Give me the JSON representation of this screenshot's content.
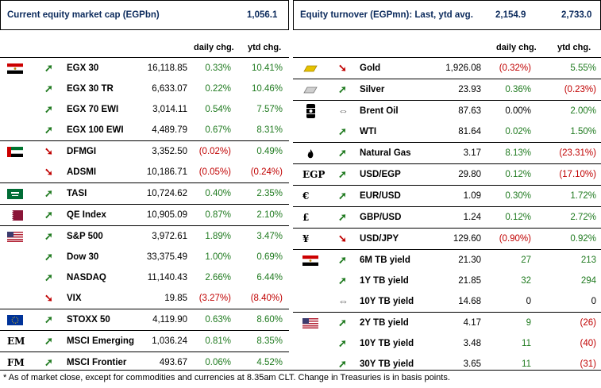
{
  "left_header": {
    "title": "Current equity market cap (EGPbn)",
    "value": "1,056.1"
  },
  "right_header": {
    "title": "Equity turnover (EGPmn): Last, ytd avg.",
    "last": "2,154.9",
    "ytd_avg": "2,733.0"
  },
  "col_daily": "daily chg.",
  "col_ytd": "ytd chg.",
  "left_rows": [
    {
      "flag": "egypt-flag-icon",
      "dir": "up",
      "name": "EGX 30",
      "value": "16,118.85",
      "daily": "0.33%",
      "ytd": "10.41%",
      "dc": "g",
      "yc": "g",
      "group_start": true
    },
    {
      "flag": "",
      "dir": "up",
      "name": "EGX 30 TR",
      "value": "6,633.07",
      "daily": "0.22%",
      "ytd": "10.46%",
      "dc": "g",
      "yc": "g"
    },
    {
      "flag": "",
      "dir": "up",
      "name": "EGX 70 EWI",
      "value": "3,014.11",
      "daily": "0.54%",
      "ytd": "7.57%",
      "dc": "g",
      "yc": "g"
    },
    {
      "flag": "",
      "dir": "up",
      "name": "EGX 100 EWI",
      "value": "4,489.79",
      "daily": "0.67%",
      "ytd": "8.31%",
      "dc": "g",
      "yc": "g"
    },
    {
      "flag": "uae-flag-icon",
      "dir": "down",
      "name": "DFMGI",
      "value": "3,352.50",
      "daily": "(0.02%)",
      "ytd": "0.49%",
      "dc": "r",
      "yc": "g",
      "group_start": true
    },
    {
      "flag": "",
      "dir": "down",
      "name": "ADSMI",
      "value": "10,186.71",
      "daily": "(0.05%)",
      "ytd": "(0.24%)",
      "dc": "r",
      "yc": "r"
    },
    {
      "flag": "saudi-flag-icon",
      "dir": "up",
      "name": "TASI",
      "value": "10,724.62",
      "daily": "0.40%",
      "ytd": "2.35%",
      "dc": "g",
      "yc": "g",
      "group_start": true
    },
    {
      "flag": "qatar-flag-icon",
      "dir": "up",
      "name": "QE Index",
      "value": "10,905.09",
      "daily": "0.87%",
      "ytd": "2.10%",
      "dc": "g",
      "yc": "g",
      "group_start": true
    },
    {
      "flag": "us-flag-icon",
      "dir": "up",
      "name": "S&P 500",
      "value": "3,972.61",
      "daily": "1.89%",
      "ytd": "3.47%",
      "dc": "g",
      "yc": "g",
      "group_start": true
    },
    {
      "flag": "",
      "dir": "up",
      "name": "Dow 30",
      "value": "33,375.49",
      "daily": "1.00%",
      "ytd": "0.69%",
      "dc": "g",
      "yc": "g"
    },
    {
      "flag": "",
      "dir": "up",
      "name": "NASDAQ",
      "value": "11,140.43",
      "daily": "2.66%",
      "ytd": "6.44%",
      "dc": "g",
      "yc": "g"
    },
    {
      "flag": "",
      "dir": "down",
      "name": "VIX",
      "value": "19.85",
      "daily": "(3.27%)",
      "ytd": "(8.40%)",
      "dc": "r",
      "yc": "r"
    },
    {
      "flag": "eu-flag-icon",
      "dir": "up",
      "name": "STOXX 50",
      "value": "4,119.90",
      "daily": "0.63%",
      "ytd": "8.60%",
      "dc": "g",
      "yc": "g",
      "group_start": true
    },
    {
      "flag": "text",
      "flag_text": "EM",
      "dir": "up",
      "name": "MSCI Emerging",
      "value": "1,036.24",
      "daily": "0.81%",
      "ytd": "8.35%",
      "dc": "g",
      "yc": "g",
      "group_start": true
    },
    {
      "flag": "text",
      "flag_text": "FM",
      "dir": "up",
      "name": "MSCI Frontier",
      "value": "493.67",
      "daily": "0.06%",
      "ytd": "4.52%",
      "dc": "g",
      "yc": "g",
      "group_start": true
    }
  ],
  "right_rows": [
    {
      "icon": "gold-bar-icon",
      "dir": "down",
      "name": "Gold",
      "value": "1,926.08",
      "daily": "(0.32%)",
      "ytd": "5.55%",
      "dc": "r",
      "yc": "g",
      "group_start": true
    },
    {
      "icon": "silver-bar-icon",
      "dir": "up",
      "name": "Silver",
      "value": "23.93",
      "daily": "0.36%",
      "ytd": "(0.23%)",
      "dc": "g",
      "yc": "r",
      "group_start": true
    },
    {
      "icon": "oil-barrel-icon",
      "dir": "flat",
      "name": "Brent Oil",
      "value": "87.63",
      "daily": "0.00%",
      "ytd": "2.00%",
      "dc": "k",
      "yc": "g",
      "group_start": true
    },
    {
      "icon": "",
      "dir": "up",
      "name": "WTI",
      "value": "81.64",
      "daily": "0.02%",
      "ytd": "1.50%",
      "dc": "g",
      "yc": "g"
    },
    {
      "icon": "flame-icon",
      "dir": "up",
      "name": "Natural Gas",
      "value": "3.17",
      "daily": "8.13%",
      "ytd": "(23.31%)",
      "dc": "g",
      "yc": "r",
      "group_start": true
    },
    {
      "icon": "text",
      "icon_text": "EGP",
      "dir": "up",
      "name": "USD/EGP",
      "value": "29.80",
      "daily": "0.12%",
      "ytd": "(17.10%)",
      "dc": "g",
      "yc": "r",
      "group_start": true
    },
    {
      "icon": "text",
      "icon_text": "€",
      "dir": "up",
      "name": "EUR/USD",
      "value": "1.09",
      "daily": "0.30%",
      "ytd": "1.72%",
      "dc": "g",
      "yc": "g",
      "group_start": true
    },
    {
      "icon": "text",
      "icon_text": "£",
      "dir": "up",
      "name": "GBP/USD",
      "value": "1.24",
      "daily": "0.12%",
      "ytd": "2.72%",
      "dc": "g",
      "yc": "g",
      "group_start": true
    },
    {
      "icon": "text",
      "icon_text": "¥",
      "dir": "down",
      "name": "USD/JPY",
      "value": "129.60",
      "daily": "(0.90%)",
      "ytd": "0.92%",
      "dc": "r",
      "yc": "g",
      "group_start": true
    },
    {
      "icon": "egypt-flag-icon",
      "dir": "up",
      "name": "6M TB yield",
      "value": "21.30",
      "daily": "27",
      "ytd": "213",
      "dc": "g",
      "yc": "g",
      "group_start": true
    },
    {
      "icon": "",
      "dir": "up",
      "name": "1Y TB yield",
      "value": "21.85",
      "daily": "32",
      "ytd": "294",
      "dc": "g",
      "yc": "g"
    },
    {
      "icon": "",
      "dir": "flat",
      "name": "10Y TB yield",
      "value": "14.68",
      "daily": "0",
      "ytd": "0",
      "dc": "k",
      "yc": "k"
    },
    {
      "icon": "us-flag-icon",
      "dir": "up",
      "name": "2Y TB yield",
      "value": "4.17",
      "daily": "9",
      "ytd": "(26)",
      "dc": "g",
      "yc": "r",
      "group_start": true
    },
    {
      "icon": "",
      "dir": "up",
      "name": "10Y TB yield",
      "value": "3.48",
      "daily": "11",
      "ytd": "(40)",
      "dc": "g",
      "yc": "r"
    },
    {
      "icon": "",
      "dir": "up",
      "name": "30Y TB yield",
      "value": "3.65",
      "daily": "11",
      "ytd": "(31)",
      "dc": "g",
      "yc": "r"
    }
  ],
  "footnote": "* As of market close, except for commodities and currencies at 8.35am CLT. Change in Treasuries is in basis points.",
  "colors": {
    "up": "#1f7a1f",
    "down": "#c00000",
    "header_text": "#0b2a5c"
  }
}
